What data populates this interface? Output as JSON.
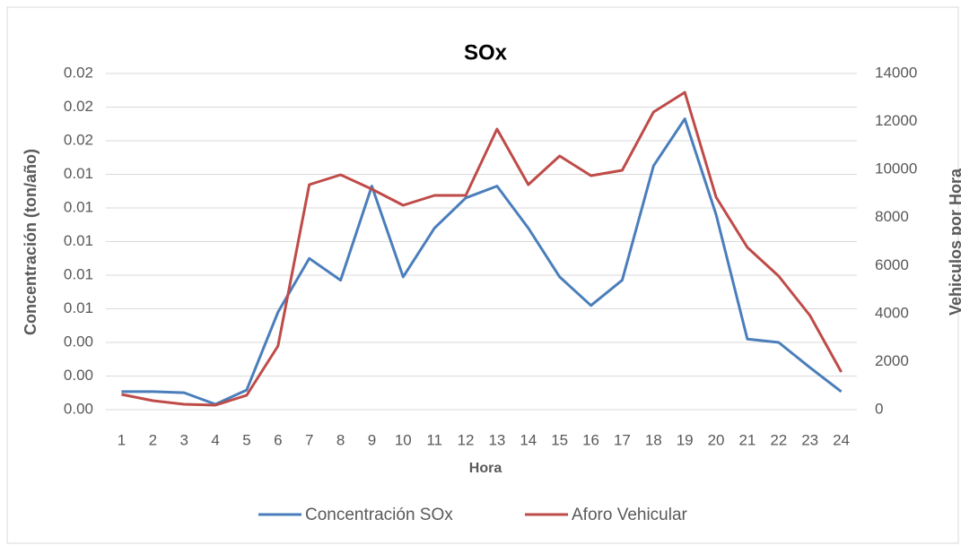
{
  "chart_data": {
    "type": "line",
    "title": "SOx",
    "xlabel": "Hora",
    "ylabel": "Concentración (ton/año)",
    "y2label": "Vehiculos por Hora",
    "categories": [
      "1",
      "2",
      "3",
      "4",
      "5",
      "6",
      "7",
      "8",
      "9",
      "10",
      "11",
      "12",
      "13",
      "14",
      "15",
      "16",
      "17",
      "18",
      "19",
      "20",
      "21",
      "22",
      "23",
      "24"
    ],
    "series": [
      {
        "name": "Concentración SOx",
        "color": "#4a7ebb",
        "axis": "y",
        "values": [
          0.00107,
          0.00107,
          0.00101,
          0.00032,
          0.00117,
          0.0058,
          0.009,
          0.0077,
          0.0133,
          0.0079,
          0.0108,
          0.0126,
          0.0133,
          0.0108,
          0.0079,
          0.0062,
          0.0077,
          0.0145,
          0.0173,
          0.0116,
          0.0042,
          0.004,
          0.0025,
          0.00107
        ]
      },
      {
        "name": "Aforo Vehicular",
        "color": "#be4b48",
        "axis": "y2",
        "values": [
          635,
          373,
          224,
          187,
          597,
          2651,
          9371,
          9781,
          9184,
          8512,
          8923,
          8923,
          11685,
          9371,
          10565,
          9744,
          9968,
          12395,
          13216,
          8848,
          6757,
          5563,
          3920,
          1568
        ]
      }
    ],
    "ylim": [
      0,
      0.02
    ],
    "yticks": [
      {
        "value": 0,
        "label": "0.00"
      },
      {
        "value": 0.002,
        "label": "0.00"
      },
      {
        "value": 0.004,
        "label": "0.00"
      },
      {
        "value": 0.006,
        "label": "0.01"
      },
      {
        "value": 0.008,
        "label": "0.01"
      },
      {
        "value": 0.01,
        "label": "0.01"
      },
      {
        "value": 0.012,
        "label": "0.01"
      },
      {
        "value": 0.014,
        "label": "0.01"
      },
      {
        "value": 0.016,
        "label": "0.02"
      },
      {
        "value": 0.018,
        "label": "0.02"
      },
      {
        "value": 0.02,
        "label": "0.02"
      }
    ],
    "y2lim": [
      0,
      14000
    ],
    "y2ticks": [
      0,
      2000,
      4000,
      6000,
      8000,
      10000,
      12000,
      14000
    ],
    "grid": true,
    "legend": "bottom"
  }
}
